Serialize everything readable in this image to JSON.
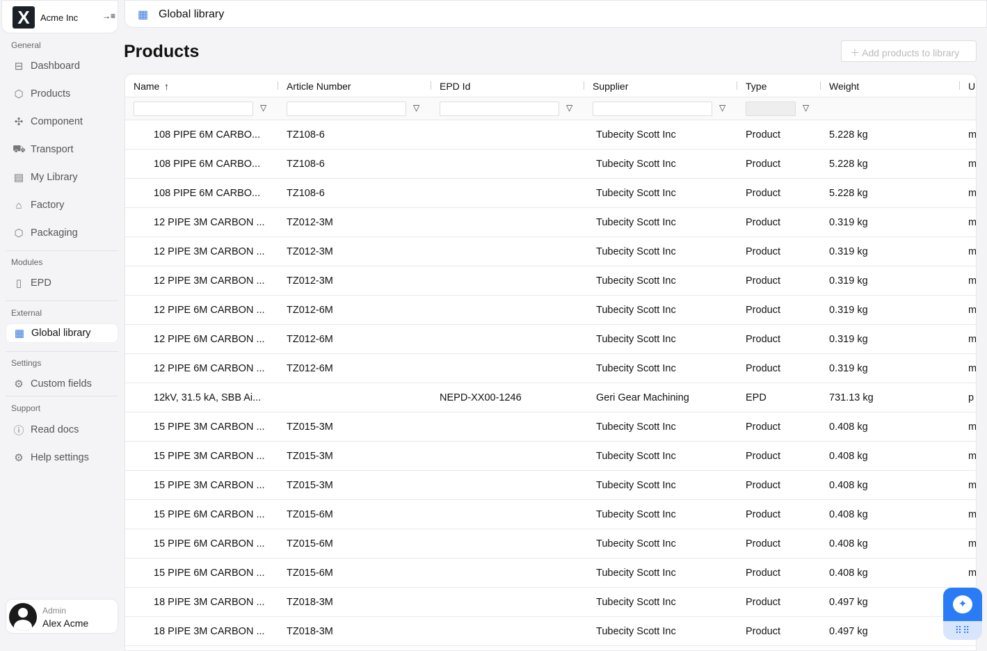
{
  "org": {
    "name": "Acme Inc",
    "logo": "X"
  },
  "sidebar": {
    "sections": [
      "General",
      "Modules",
      "External",
      "Settings",
      "Support"
    ],
    "items": [
      {
        "label": "Dashboard",
        "icon": "layout-icon"
      },
      {
        "label": "Products",
        "icon": "box-icon"
      },
      {
        "label": "Component",
        "icon": "puzzle-icon"
      },
      {
        "label": "Transport",
        "icon": "truck-icon"
      },
      {
        "label": "My Library",
        "icon": "library-icon"
      },
      {
        "label": "Factory",
        "icon": "factory-icon"
      },
      {
        "label": "Packaging",
        "icon": "package-icon"
      },
      {
        "label": "EPD",
        "icon": "document-icon"
      },
      {
        "label": "Global library",
        "icon": "store-icon"
      },
      {
        "label": "Custom fields",
        "icon": "gear-icon"
      },
      {
        "label": "Read docs",
        "icon": "help-icon"
      },
      {
        "label": "Help settings",
        "icon": "gear-icon"
      }
    ],
    "active": "Global library"
  },
  "user": {
    "role": "Admin",
    "name": "Alex Acme"
  },
  "header": {
    "title": "Global library"
  },
  "page": {
    "title": "Products",
    "add_button": "Add products to library"
  },
  "table": {
    "columns": [
      "Name",
      "Article Number",
      "EPD Id",
      "Supplier",
      "Type",
      "Weight",
      "Ur"
    ],
    "sort": {
      "column": "Name",
      "direction": "ascending"
    },
    "rows": [
      [
        "108 PIPE 6M CARBO...",
        "TZ108-6",
        "",
        "Tubecity Scott Inc",
        "Product",
        "5.228 kg",
        "m"
      ],
      [
        "108 PIPE 6M CARBO...",
        "TZ108-6",
        "",
        "Tubecity Scott Inc",
        "Product",
        "5.228 kg",
        "m"
      ],
      [
        "108 PIPE 6M CARBO...",
        "TZ108-6",
        "",
        "Tubecity Scott Inc",
        "Product",
        "5.228 kg",
        "m"
      ],
      [
        "12 PIPE 3M CARBON ...",
        "TZ012-3M",
        "",
        "Tubecity Scott Inc",
        "Product",
        "0.319 kg",
        "m"
      ],
      [
        "12 PIPE 3M CARBON ...",
        "TZ012-3M",
        "",
        "Tubecity Scott Inc",
        "Product",
        "0.319 kg",
        "m"
      ],
      [
        "12 PIPE 3M CARBON ...",
        "TZ012-3M",
        "",
        "Tubecity Scott Inc",
        "Product",
        "0.319 kg",
        "m"
      ],
      [
        "12 PIPE 6M CARBON ...",
        "TZ012-6M",
        "",
        "Tubecity Scott Inc",
        "Product",
        "0.319 kg",
        "m"
      ],
      [
        "12 PIPE 6M CARBON ...",
        "TZ012-6M",
        "",
        "Tubecity Scott Inc",
        "Product",
        "0.319 kg",
        "m"
      ],
      [
        "12 PIPE 6M CARBON ...",
        "TZ012-6M",
        "",
        "Tubecity Scott Inc",
        "Product",
        "0.319 kg",
        "m"
      ],
      [
        "12kV, 31.5 kA, SBB Ai...",
        "",
        "NEPD-XX00-1246",
        "Geri Gear Machining",
        "EPD",
        "731.13 kg",
        "p"
      ],
      [
        "15 PIPE 3M CARBON ...",
        "TZ015-3M",
        "",
        "Tubecity Scott Inc",
        "Product",
        "0.408 kg",
        "m"
      ],
      [
        "15 PIPE 3M CARBON ...",
        "TZ015-3M",
        "",
        "Tubecity Scott Inc",
        "Product",
        "0.408 kg",
        "m"
      ],
      [
        "15 PIPE 3M CARBON ...",
        "TZ015-3M",
        "",
        "Tubecity Scott Inc",
        "Product",
        "0.408 kg",
        "m"
      ],
      [
        "15 PIPE 6M CARBON ...",
        "TZ015-6M",
        "",
        "Tubecity Scott Inc",
        "Product",
        "0.408 kg",
        "m"
      ],
      [
        "15 PIPE 6M CARBON ...",
        "TZ015-6M",
        "",
        "Tubecity Scott Inc",
        "Product",
        "0.408 kg",
        "m"
      ],
      [
        "15 PIPE 6M CARBON ...",
        "TZ015-6M",
        "",
        "Tubecity Scott Inc",
        "Product",
        "0.408 kg",
        "m"
      ],
      [
        "18 PIPE 3M CARBON ...",
        "TZ018-3M",
        "",
        "Tubecity Scott Inc",
        "Product",
        "0.497 kg",
        ""
      ],
      [
        "18 PIPE 3M CARBON ...",
        "TZ018-3M",
        "",
        "Tubecity Scott Inc",
        "Product",
        "0.497 kg",
        ""
      ]
    ]
  },
  "colors": {
    "accent": "#2a7cf6",
    "logo_bg": "#1b2227"
  }
}
